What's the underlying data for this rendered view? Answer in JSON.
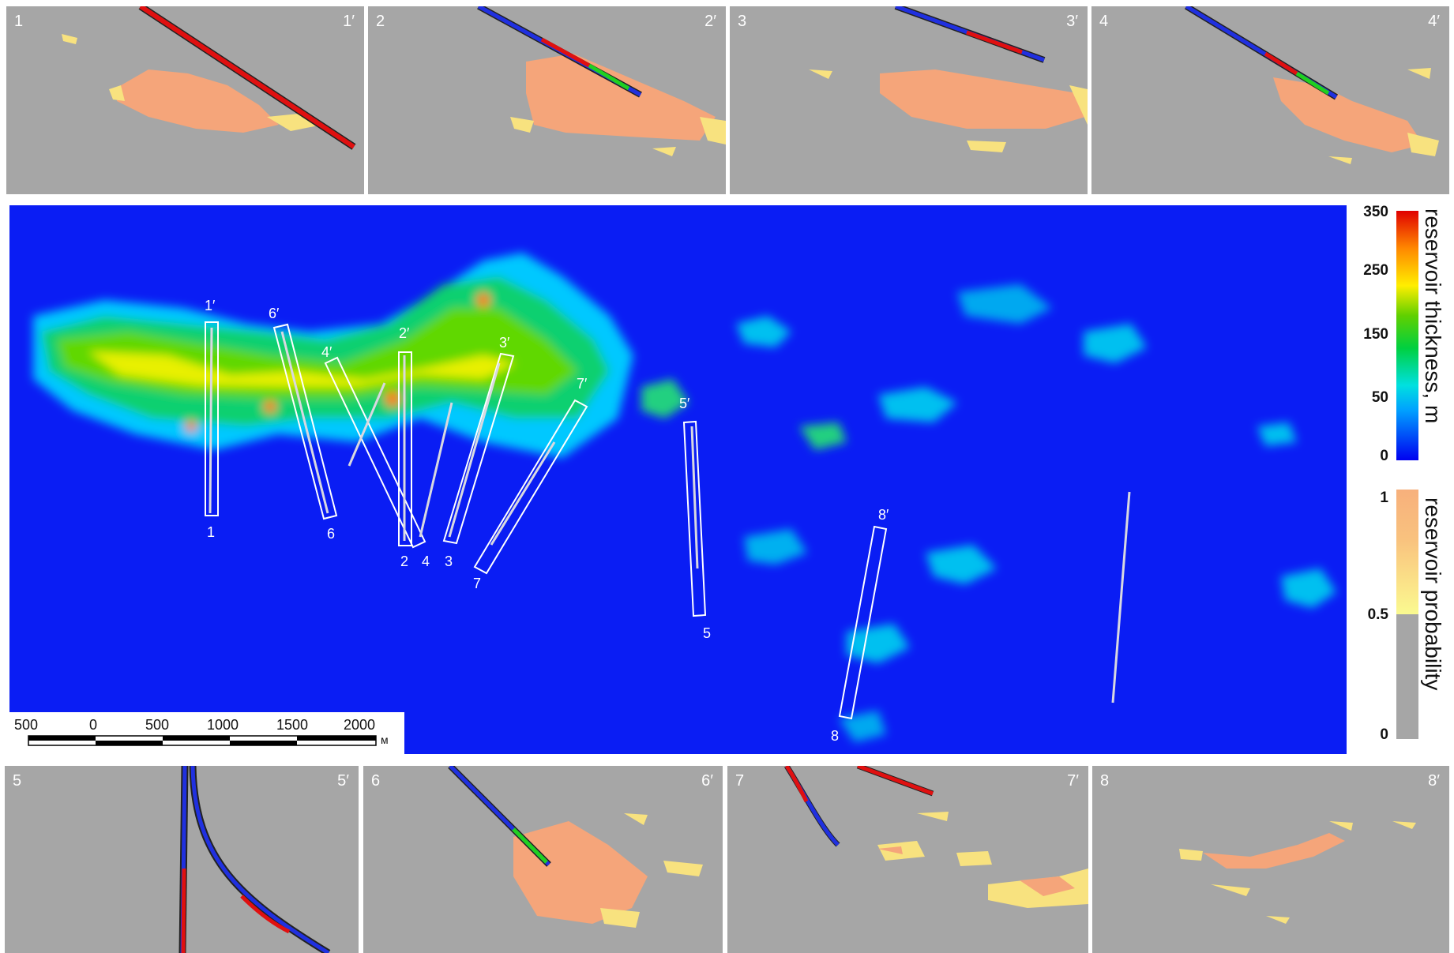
{
  "chart_data": [
    {
      "type": "heatmap",
      "description_role": "map",
      "colorbar_thickness": {
        "title": "reservoir thickness, m",
        "ticks": [
          "350",
          "250",
          "150",
          "50",
          "0"
        ],
        "range": [
          0,
          350
        ],
        "colors": [
          "#0000f0",
          "#00a0ff",
          "#00e0e0",
          "#00d040",
          "#60d000",
          "#ffee00",
          "#ff8800",
          "#e00000"
        ]
      },
      "colorbar_probability": {
        "title": "reservoir probability",
        "ticks": [
          "1",
          "0.5",
          "0"
        ],
        "range": [
          0,
          1
        ]
      },
      "scale_bar": {
        "ticks": [
          "500",
          "0",
          "500",
          "1000",
          "1500",
          "2000"
        ],
        "unit": "м"
      },
      "profile_labels": {
        "start": [
          "1",
          "6",
          "2",
          "4",
          "3",
          "7",
          "5",
          "8"
        ],
        "end": [
          "1′",
          "6′",
          "2′",
          "4′",
          "3′",
          "7′",
          "5′",
          "8′"
        ]
      }
    },
    {
      "type": "heatmap",
      "description_role": "cross-sections",
      "sections": [
        {
          "start": "1",
          "end": "1′"
        },
        {
          "start": "2",
          "end": "2′"
        },
        {
          "start": "3",
          "end": "3′"
        },
        {
          "start": "4",
          "end": "4′"
        },
        {
          "start": "5",
          "end": "5′"
        },
        {
          "start": "6",
          "end": "6′"
        },
        {
          "start": "7",
          "end": "7′"
        },
        {
          "start": "8",
          "end": "8′"
        }
      ]
    }
  ],
  "colors": {
    "background_map": "#0a1df4",
    "section_background": "#a6a6a6",
    "reservoir_high": "#f5a57a",
    "reservoir_low": "#f8e27f"
  }
}
